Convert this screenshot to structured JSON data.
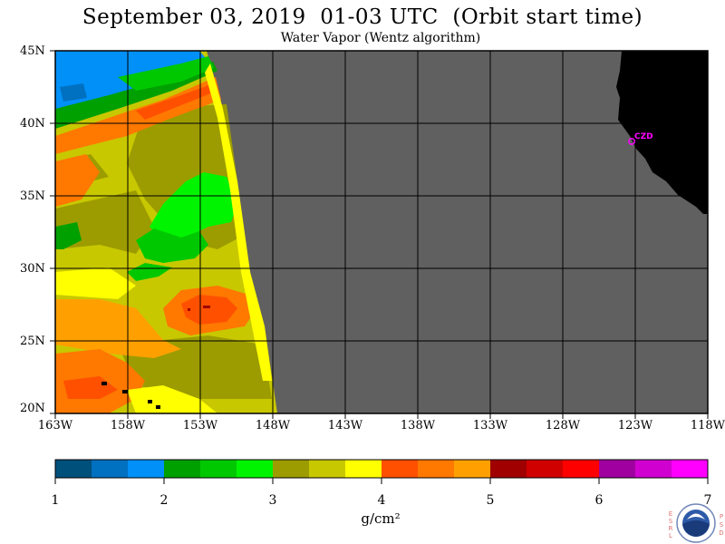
{
  "header": {
    "title": "September 03, 2019  01-03 UTC  (Orbit start time)",
    "subtitle": "Water Vapor (Wentz algorithm)"
  },
  "axes": {
    "lat_labels": [
      "45N",
      "40N",
      "35N",
      "30N",
      "25N",
      "20N"
    ],
    "lon_labels": [
      "163W",
      "158W",
      "153W",
      "148W",
      "143W",
      "138W",
      "133W",
      "128W",
      "123W",
      "118W"
    ]
  },
  "station": {
    "label": "CZD"
  },
  "colorbar": {
    "units": "g/cm²",
    "ticks": [
      "1",
      "2",
      "3",
      "4",
      "5",
      "6",
      "7"
    ],
    "colors": [
      "#00507c",
      "#0070c0",
      "#0090f8",
      "#00a000",
      "#00c800",
      "#00f400",
      "#9c9c00",
      "#c8c800",
      "#ffff00",
      "#ff5000",
      "#ff7800",
      "#ffa000",
      "#a00000",
      "#d00000",
      "#ff0000",
      "#a000a0",
      "#d000d0",
      "#ff00ff"
    ]
  },
  "colors": {
    "no_data": "#606060",
    "land": "#000000",
    "grid": "#000000"
  },
  "logo": {
    "left_letters": [
      "E",
      "S",
      "R",
      "L"
    ],
    "right_letters": [
      "P",
      "S",
      "D"
    ],
    "name": "NOAA"
  }
}
